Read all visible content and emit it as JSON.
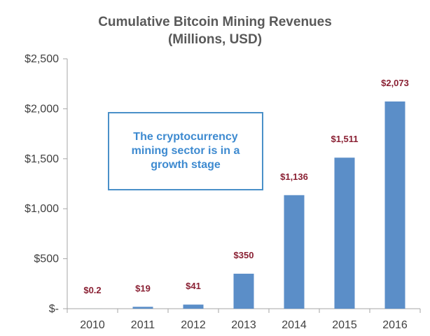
{
  "colors": {
    "bar": "#5b8ec8",
    "label": "#8a2033",
    "title": "#595959",
    "axis": "#404040",
    "callout_border": "#4a90c8",
    "callout_text": "#3d8ad0"
  },
  "callout": {
    "text": "The cryptocurrency mining sector is in a growth stage"
  },
  "chart_data": {
    "type": "bar",
    "title": [
      "Cumulative Bitcoin Mining Revenues",
      "(Millions, USD)"
    ],
    "xlabel": "",
    "ylabel": "",
    "categories": [
      "2010",
      "2011",
      "2012",
      "2013",
      "2014",
      "2015",
      "2016"
    ],
    "values": [
      0.2,
      19,
      41,
      350,
      1136,
      1511,
      2073
    ],
    "value_labels": [
      "$0.2",
      "$19",
      "$41",
      "$350",
      "$1,136",
      "$1,511",
      "$2,073"
    ],
    "ylim": [
      0,
      2500
    ],
    "yticks": [
      0,
      500,
      1000,
      1500,
      2000,
      2500
    ],
    "ytick_labels": [
      "$-",
      "$500",
      "$1,000",
      "$1,500",
      "$2,000",
      "$2,500"
    ],
    "grid": false,
    "legend": "none"
  }
}
